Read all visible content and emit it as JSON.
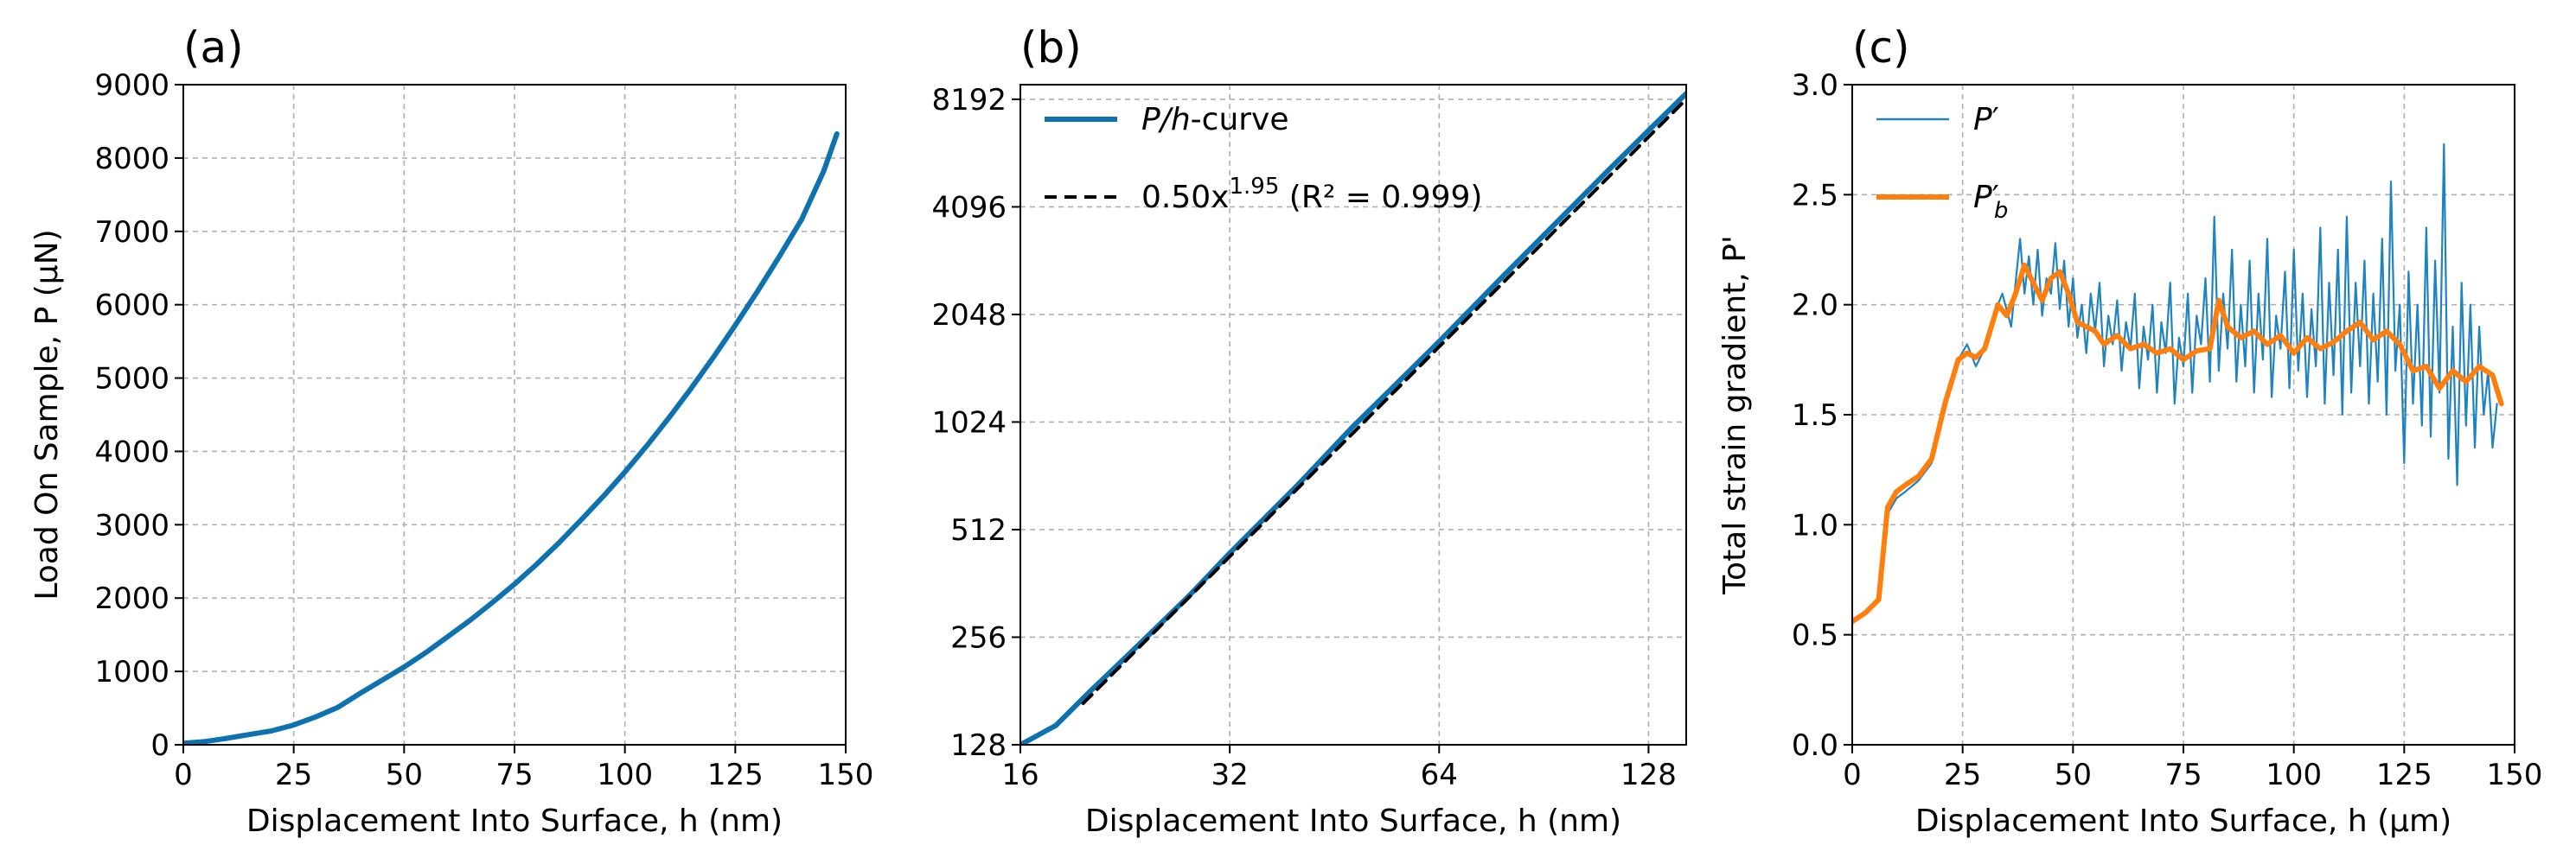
{
  "chart_data": [
    {
      "type": "line",
      "panel_label": "(a)",
      "xlabel": "Displacement Into Surface, h (nm)",
      "ylabel": "Load On Sample, P (µN)",
      "xlim": [
        0,
        150
      ],
      "ylim": [
        0,
        9000
      ],
      "xticks": [
        0,
        25,
        50,
        75,
        100,
        125,
        150
      ],
      "xtick_labels": [
        "0",
        "25",
        "50",
        "75",
        "100",
        "125",
        "150"
      ],
      "yticks": [
        0,
        1000,
        2000,
        3000,
        4000,
        5000,
        6000,
        7000,
        8000,
        9000
      ],
      "ytick_labels": [
        "0",
        "1000",
        "2000",
        "3000",
        "4000",
        "5000",
        "6000",
        "7000",
        "8000",
        "9000"
      ],
      "grid": true,
      "series": [
        {
          "name": "P/h-curve",
          "color": "#0e72b1",
          "x": [
            0,
            5,
            10,
            15,
            20,
            25,
            30,
            35,
            40,
            45,
            50,
            55,
            60,
            65,
            70,
            75,
            80,
            85,
            90,
            95,
            100,
            105,
            110,
            115,
            120,
            125,
            130,
            135,
            140,
            145,
            148
          ],
          "y": [
            20,
            45,
            90,
            140,
            190,
            270,
            380,
            510,
            700,
            880,
            1060,
            1260,
            1480,
            1700,
            1940,
            2190,
            2460,
            2750,
            3060,
            3380,
            3720,
            4080,
            4460,
            4860,
            5280,
            5720,
            6180,
            6660,
            7160,
            7820,
            8330
          ]
        }
      ]
    },
    {
      "type": "line",
      "panel_label": "(b)",
      "xlabel": "Displacement Into Surface, h (nm)",
      "xscale": "log2",
      "yscale": "log2",
      "xlim": [
        16,
        145
      ],
      "ylim": [
        128,
        9000
      ],
      "xticks": [
        16,
        32,
        64,
        128
      ],
      "xtick_labels": [
        "16",
        "32",
        "64",
        "128"
      ],
      "yticks": [
        128,
        256,
        512,
        1024,
        2048,
        4096,
        8192
      ],
      "ytick_labels": [
        "128",
        "256",
        "512",
        "1024",
        "2048",
        "4096",
        "8192"
      ],
      "grid": true,
      "legend_position": "upper-left",
      "series": [
        {
          "name": "P/h-curve",
          "legend_parts": [
            "P/h",
            "-curve"
          ],
          "color": "#0e72b1",
          "style": "solid",
          "x": [
            16,
            18,
            20,
            24,
            28,
            32,
            40,
            48,
            56,
            64,
            80,
            96,
            112,
            128,
            145
          ],
          "y": [
            128,
            145,
            178,
            250,
            335,
            440,
            680,
            990,
            1330,
            1720,
            2680,
            3830,
            5180,
            6700,
            8500
          ]
        },
        {
          "name": "0.50x1.95 (R² = 0.999)",
          "legend_parts": [
            "0.50x",
            "1.95",
            " (R² = 0.999)"
          ],
          "color": "#000000",
          "style": "dashed",
          "coefficient": 0.5,
          "exponent": 1.95,
          "r_squared": 0.999,
          "x": [
            19.7,
            145
          ]
        }
      ]
    },
    {
      "type": "line",
      "panel_label": "(c)",
      "xlabel": "Displacement Into Surface, h (µm)",
      "ylabel": "Total strain gradient, P'",
      "xlim": [
        0,
        150
      ],
      "ylim": [
        0,
        3.0
      ],
      "xticks": [
        0,
        25,
        50,
        75,
        100,
        125,
        150
      ],
      "xtick_labels": [
        "0",
        "25",
        "50",
        "75",
        "100",
        "125",
        "150"
      ],
      "yticks": [
        0,
        0.5,
        1.0,
        1.5,
        2.0,
        2.5,
        3.0
      ],
      "ytick_labels": [
        "0.0",
        "0.5",
        "1.0",
        "1.5",
        "2.0",
        "2.5",
        "3.0"
      ],
      "grid": true,
      "legend_position": "upper-left",
      "series": [
        {
          "name": "P′",
          "legend_parts": [
            "P",
            "′"
          ],
          "color": "#1f83c0",
          "x": [
            0,
            3,
            6,
            8,
            10,
            12,
            15,
            18,
            21,
            24,
            26,
            28,
            30,
            32,
            34,
            36,
            37,
            38,
            39,
            40,
            41,
            42,
            43,
            44,
            45,
            46,
            47,
            48,
            49,
            50,
            51,
            52,
            53,
            54,
            55,
            56,
            57,
            58,
            59,
            60,
            61,
            62,
            63,
            64,
            65,
            66,
            67,
            68,
            69,
            70,
            71,
            72,
            73,
            74,
            75,
            76,
            77,
            78,
            79,
            80,
            81,
            82,
            83,
            84,
            85,
            86,
            87,
            88,
            89,
            90,
            91,
            92,
            93,
            94,
            95,
            96,
            97,
            98,
            99,
            100,
            101,
            102,
            103,
            104,
            105,
            106,
            107,
            108,
            109,
            110,
            111,
            112,
            113,
            114,
            115,
            116,
            117,
            118,
            119,
            120,
            121,
            122,
            123,
            124,
            125,
            126,
            127,
            128,
            129,
            130,
            131,
            132,
            133,
            134,
            135,
            136,
            137,
            138,
            139,
            140,
            141,
            142,
            143,
            144,
            145,
            146
          ],
          "y": [
            0.55,
            0.6,
            0.65,
            1.05,
            1.12,
            1.15,
            1.2,
            1.28,
            1.52,
            1.75,
            1.82,
            1.72,
            1.8,
            1.95,
            2.05,
            1.9,
            2.1,
            2.3,
            2.05,
            2.22,
            2.0,
            2.25,
            1.95,
            2.12,
            2.05,
            2.28,
            1.98,
            2.2,
            1.9,
            2.12,
            1.85,
            2.0,
            1.78,
            2.05,
            1.88,
            2.1,
            1.72,
            1.95,
            1.82,
            2.02,
            1.7,
            1.92,
            1.8,
            2.05,
            1.62,
            1.9,
            1.75,
            2.0,
            1.6,
            1.92,
            1.78,
            2.1,
            1.55,
            1.85,
            1.72,
            2.05,
            1.6,
            1.95,
            1.82,
            2.12,
            1.65,
            2.4,
            1.7,
            2.05,
            1.8,
            2.25,
            1.65,
            2.0,
            1.72,
            2.2,
            1.6,
            2.05,
            1.75,
            2.3,
            1.58,
            1.95,
            1.8,
            2.15,
            1.62,
            2.25,
            1.7,
            2.05,
            1.58,
            1.98,
            1.72,
            2.35,
            1.55,
            2.1,
            1.68,
            2.25,
            1.5,
            2.4,
            1.6,
            2.1,
            1.72,
            2.2,
            1.55,
            2.05,
            1.65,
            2.3,
            1.5,
            2.56,
            1.7,
            2.0,
            1.28,
            2.15,
            1.55,
            2.0,
            1.45,
            2.35,
            1.4,
            2.2,
            1.6,
            2.73,
            1.3,
            1.9,
            1.18,
            2.1,
            1.45,
            2.0,
            1.35,
            1.9,
            1.5,
            1.7,
            1.35,
            1.55
          ]
        },
        {
          "name": "P′b",
          "legend_parts": [
            "P",
            "′",
            "b"
          ],
          "color": "#ff7f0e",
          "x": [
            0,
            3,
            6,
            8,
            10,
            12,
            15,
            18,
            21,
            24,
            26,
            28,
            30,
            33,
            35,
            37,
            39,
            41,
            43,
            45,
            47,
            49,
            51,
            53,
            55,
            57,
            60,
            63,
            66,
            69,
            72,
            75,
            78,
            81,
            83,
            85,
            88,
            91,
            94,
            97,
            100,
            103,
            106,
            109,
            112,
            115,
            118,
            121,
            124,
            127,
            130,
            133,
            136,
            139,
            142,
            145,
            147
          ],
          "y": [
            0.56,
            0.6,
            0.66,
            1.08,
            1.15,
            1.18,
            1.22,
            1.3,
            1.55,
            1.75,
            1.78,
            1.76,
            1.8,
            2.0,
            1.95,
            2.05,
            2.18,
            2.1,
            2.02,
            2.12,
            2.15,
            2.05,
            1.92,
            1.9,
            1.88,
            1.82,
            1.86,
            1.8,
            1.82,
            1.78,
            1.8,
            1.75,
            1.79,
            1.8,
            2.02,
            1.9,
            1.85,
            1.88,
            1.82,
            1.86,
            1.78,
            1.85,
            1.8,
            1.83,
            1.88,
            1.92,
            1.84,
            1.88,
            1.82,
            1.7,
            1.72,
            1.62,
            1.7,
            1.65,
            1.72,
            1.68,
            1.55
          ]
        }
      ]
    }
  ]
}
